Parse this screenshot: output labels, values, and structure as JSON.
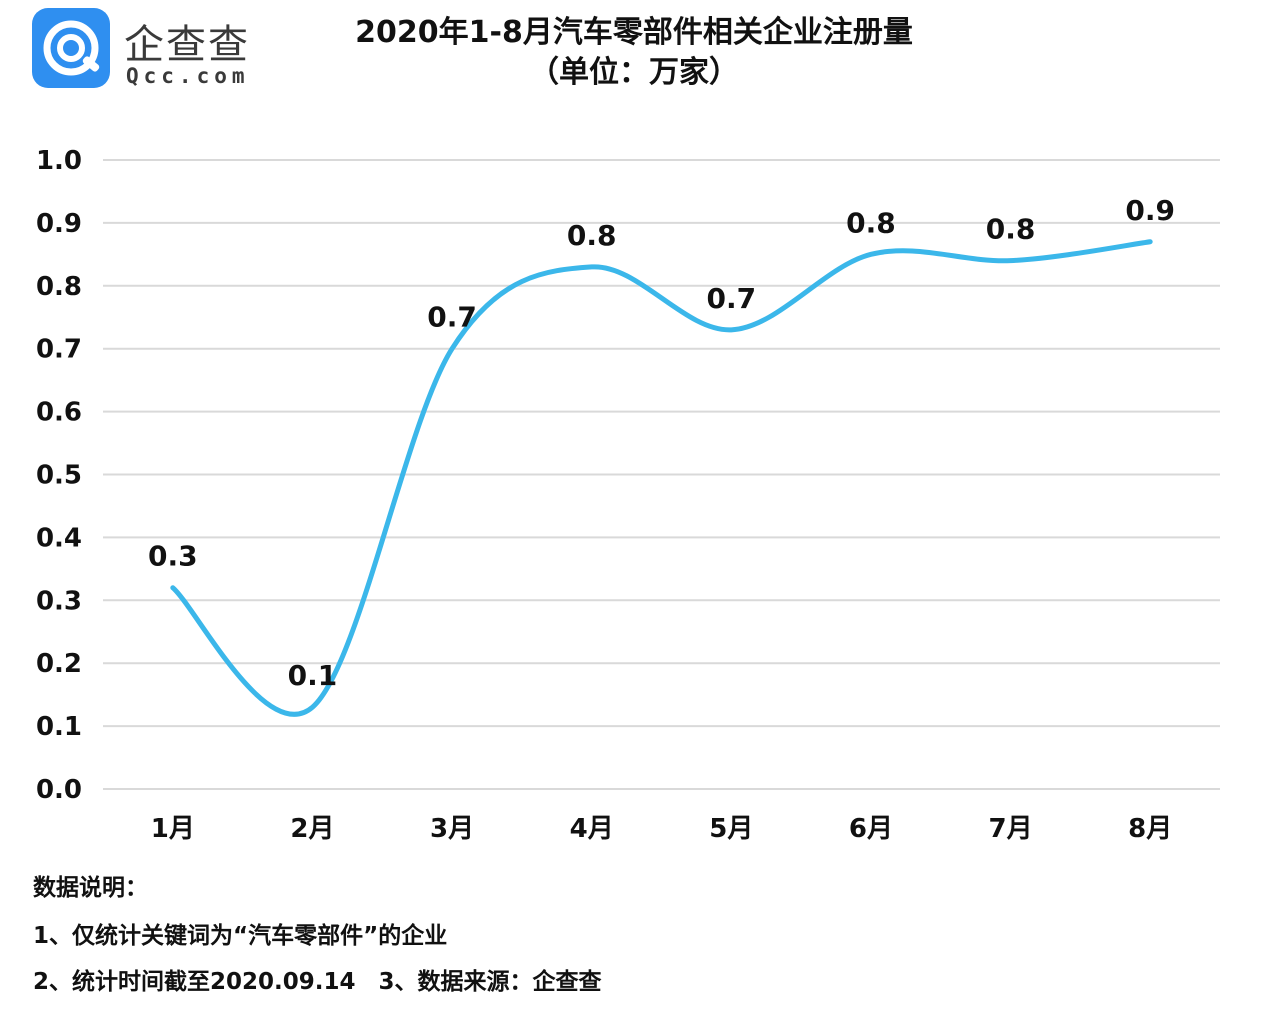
{
  "logo": {
    "name_cn": "企查查",
    "name_en": "Qcc.com",
    "brand_color": "#2f8ff0"
  },
  "title": "2020年1-8月汽车零部件相关企业注册量",
  "subtitle": "（单位：万家）",
  "chart_data": {
    "type": "line",
    "smooth": true,
    "categories": [
      "1月",
      "2月",
      "3月",
      "4月",
      "5月",
      "6月",
      "7月",
      "8月"
    ],
    "values": [
      0.32,
      0.13,
      0.7,
      0.83,
      0.73,
      0.85,
      0.84,
      0.87
    ],
    "data_labels": [
      "0.3",
      "0.1",
      "0.7",
      "0.8",
      "0.7",
      "0.8",
      "0.8",
      "0.9"
    ],
    "yticks": [
      "0.0",
      "0.1",
      "0.2",
      "0.3",
      "0.4",
      "0.5",
      "0.6",
      "0.7",
      "0.8",
      "0.9",
      "1.0"
    ],
    "ylim": [
      0,
      1.0
    ],
    "grid": true,
    "line_color": "#3bb7ea",
    "grid_color": "#d9d9d9"
  },
  "notes": {
    "heading": "数据说明：",
    "line1": "1、仅统计关键词为“汽车零部件”的企业",
    "line2": "2、统计时间截至2020.09.14　3、数据来源：企查查"
  }
}
